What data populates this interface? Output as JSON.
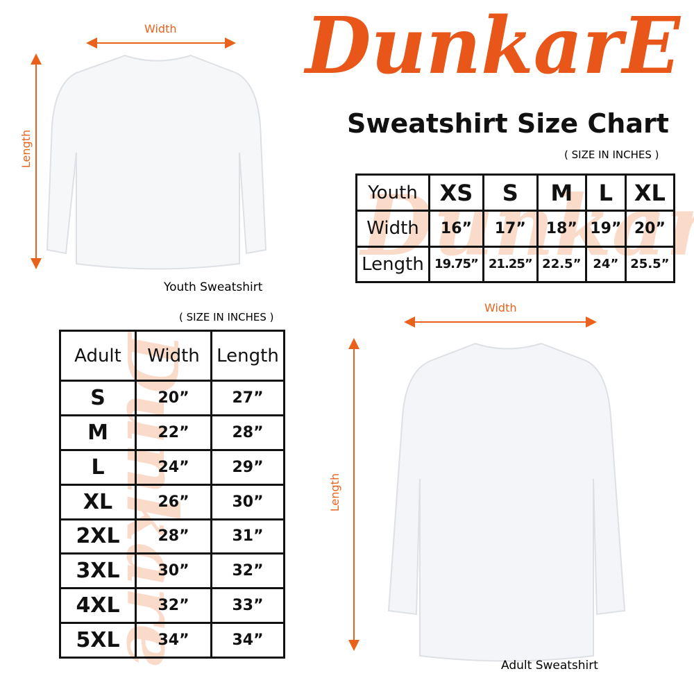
{
  "brand": {
    "logo": "DunkarE",
    "color": "#e8561a"
  },
  "title": "Sweatshirt Size Chart",
  "youth": {
    "caption": "Youth Sweatshirt",
    "unit_note": "( SIZE IN INCHES )",
    "width_label": "Width",
    "length_label": "Length",
    "header": [
      "Youth",
      "XS",
      "S",
      "M",
      "L",
      "XL"
    ],
    "rows": [
      [
        "Width",
        "16”",
        "17”",
        "18”",
        "19”",
        "20”"
      ],
      [
        "Length",
        "19.75”",
        "21.25”",
        "22.5”",
        "24”",
        "25.5”"
      ]
    ]
  },
  "adult": {
    "caption": "Adult Sweatshirt",
    "unit_note": "( SIZE IN INCHES )",
    "width_label": "Width",
    "length_label": "Length",
    "header": [
      "Adult",
      "Width",
      "Length"
    ],
    "rows": [
      [
        "S",
        "20”",
        "27”"
      ],
      [
        "M",
        "22”",
        "28”"
      ],
      [
        "L",
        "24”",
        "29”"
      ],
      [
        "XL",
        "26”",
        "30”"
      ],
      [
        "2XL",
        "28”",
        "31”"
      ],
      [
        "3XL",
        "30”",
        "32”"
      ],
      [
        "4XL",
        "32”",
        "33”"
      ],
      [
        "5XL",
        "34”",
        "34”"
      ]
    ]
  }
}
